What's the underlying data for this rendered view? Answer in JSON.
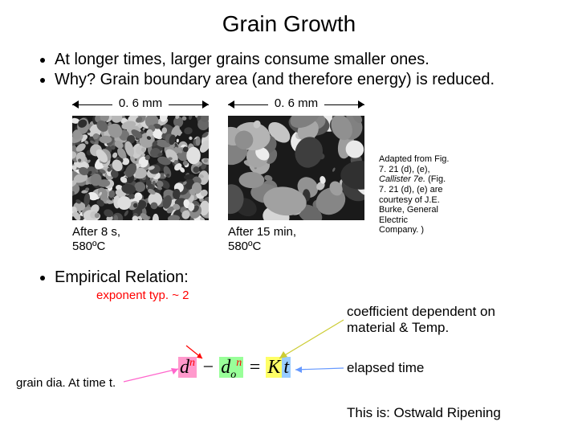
{
  "title": "Grain Growth",
  "bullets": [
    "At longer times, larger grains consume smaller ones.",
    "Why?  Grain boundary area (and therefore energy) is reduced."
  ],
  "figs": {
    "scale_label": "0. 6 mm",
    "left_caption_l1": "After 8 s,",
    "left_caption_l2": "580ºC",
    "right_caption_l1": "After 15 min,",
    "right_caption_l2": "580ºC"
  },
  "citation": {
    "l1": "Adapted from Fig.",
    "l2": "7. 21 (d), (e),",
    "l3_ital": "Callister 7e.",
    "l3_rest": "  (Fig.",
    "l4": "7. 21 (d), (e) are",
    "l5": "courtesy of J.E.",
    "l6": "Burke, General",
    "l7": "Electric",
    "l8": "Company. )"
  },
  "empirical_label": "Empirical Relation:",
  "exponent_label": "exponent typ. ~ 2",
  "eq": {
    "d": "d",
    "n": "n",
    "minus": " − ",
    "d0": "d",
    "sub0": "o",
    "eq": " = ",
    "K": "K",
    "t": "t"
  },
  "graindia": "grain dia. At time t.",
  "coeff_l1": "coefficient dependent on",
  "coeff_l2": "material & Temp.",
  "elapsed": "elapsed time",
  "ostwald": "This is: Ostwald Ripening",
  "colors": {
    "exponent": "#ff0000",
    "graindia_arrow": "#ff66cc",
    "exponent_arrow": "#ff0000",
    "coeff_arrow": "#cccc33",
    "elapsed_arrow": "#6699ff",
    "hl_d": "#ff99cc",
    "hl_d0": "#99ff99",
    "hl_K": "#ffff66",
    "hl_t": "#99ccff"
  },
  "grain_seeds": {
    "fine": 420,
    "coarse": 60
  }
}
